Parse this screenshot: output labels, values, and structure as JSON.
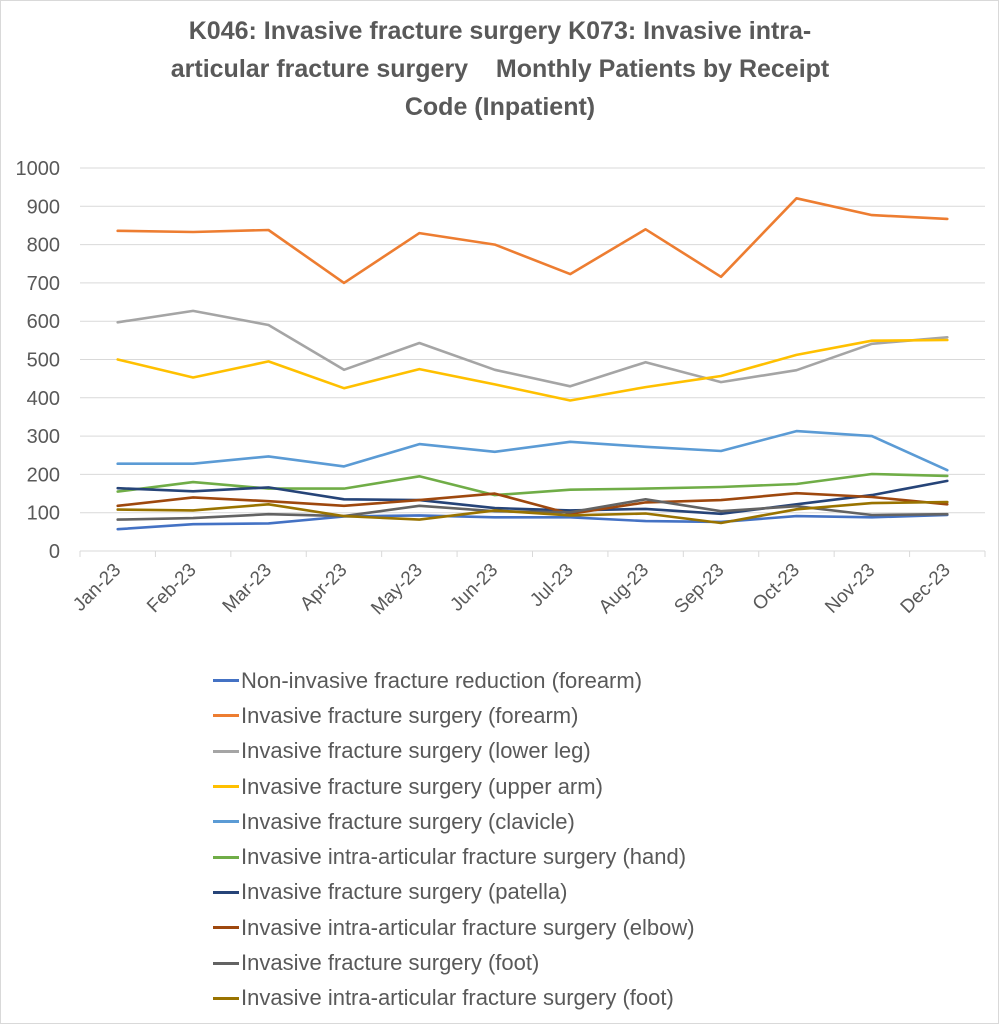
{
  "chart_data": {
    "type": "line",
    "title_lines": [
      "K046: Invasive fracture surgery K073: Invasive intra-",
      "articular fracture surgery    Monthly Patients by Receipt",
      "Code (Inpatient)"
    ],
    "title": "K046: Invasive fracture surgery K073: Invasive intra-articular fracture surgery Monthly Patients by Receipt Code (Inpatient)",
    "xlabel": "",
    "ylabel": "",
    "ylim": [
      0,
      1000
    ],
    "yticks": [
      "0",
      "100",
      "200",
      "300",
      "400",
      "500",
      "600",
      "700",
      "800",
      "900",
      "1000"
    ],
    "ytick_values": [
      0,
      100,
      200,
      300,
      400,
      500,
      600,
      700,
      800,
      900,
      1000
    ],
    "grid": true,
    "legend_position": "bottom",
    "categories": [
      "Jan-23",
      "Feb-23",
      "Mar-23",
      "Apr-23",
      "May-23",
      "Jun-23",
      "Jul-23",
      "Aug-23",
      "Sep-23",
      "Oct-23",
      "Nov-23",
      "Dec-23"
    ],
    "series": [
      {
        "name": "Non-invasive fracture reduction (forearm)",
        "color": "#4472C4",
        "values": [
          57,
          70,
          72,
          90,
          93,
          88,
          88,
          78,
          76,
          91,
          88,
          94
        ]
      },
      {
        "name": "Invasive fracture surgery (forearm)",
        "color": "#ED7D31",
        "values": [
          836,
          833,
          838,
          700,
          830,
          800,
          723,
          840,
          716,
          921,
          877,
          867
        ]
      },
      {
        "name": "Invasive fracture surgery (lower leg)",
        "color": "#A5A5A5",
        "values": [
          597,
          627,
          590,
          473,
          543,
          473,
          430,
          493,
          441,
          472,
          541,
          558
        ]
      },
      {
        "name": "Invasive fracture surgery (upper arm)",
        "color": "#FFC000",
        "values": [
          500,
          453,
          495,
          425,
          475,
          435,
          393,
          428,
          457,
          512,
          549,
          551
        ]
      },
      {
        "name": "Invasive fracture surgery (clavicle)",
        "color": "#5B9BD5",
        "values": [
          228,
          228,
          247,
          221,
          279,
          259,
          285,
          272,
          261,
          313,
          300,
          211
        ]
      },
      {
        "name": "Invasive intra-articular fracture surgery (hand)",
        "color": "#70AD47",
        "values": [
          155,
          180,
          163,
          163,
          195,
          146,
          160,
          163,
          167,
          175,
          201,
          196
        ]
      },
      {
        "name": "Invasive fracture surgery (patella)",
        "color": "#264478",
        "values": [
          164,
          156,
          166,
          135,
          133,
          112,
          106,
          110,
          97,
          122,
          146,
          183
        ]
      },
      {
        "name": "Invasive intra-articular fracture surgery (elbow)",
        "color": "#9E480E",
        "values": [
          118,
          140,
          130,
          118,
          133,
          150,
          97,
          127,
          133,
          151,
          141,
          122
        ]
      },
      {
        "name": "Invasive fracture surgery (foot)",
        "color": "#636363",
        "values": [
          82,
          86,
          96,
          91,
          118,
          104,
          101,
          135,
          104,
          117,
          94,
          96
        ]
      },
      {
        "name": "Invasive intra-articular fracture surgery (foot)",
        "color": "#997300",
        "values": [
          108,
          106,
          122,
          91,
          82,
          106,
          93,
          98,
          73,
          109,
          125,
          128
        ]
      }
    ]
  }
}
